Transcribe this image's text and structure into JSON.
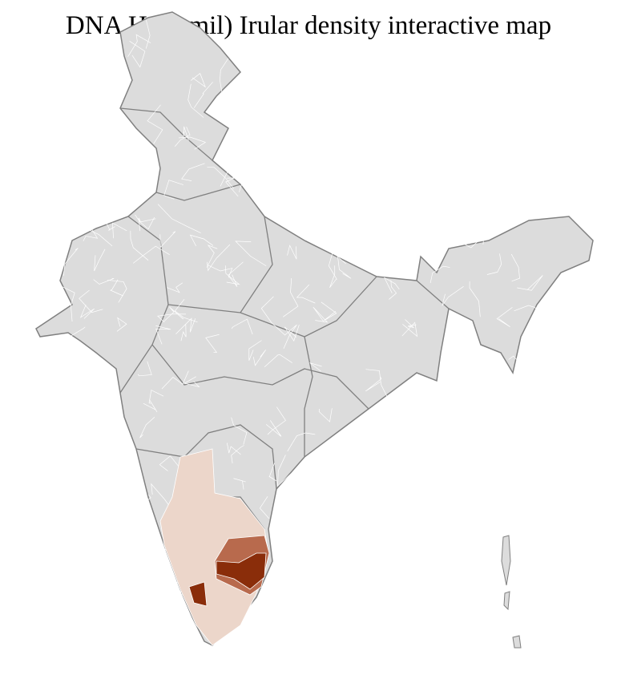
{
  "title": "DNA H (Tamil) Irular density interactive map",
  "colors": {
    "no_data": "#dcdcdc",
    "district_border": "#ffffff",
    "state_border": "#808080",
    "density_low": "#ecd6ca",
    "density_medium": "#b86a4d",
    "density_high": "#8a2d0a"
  }
}
